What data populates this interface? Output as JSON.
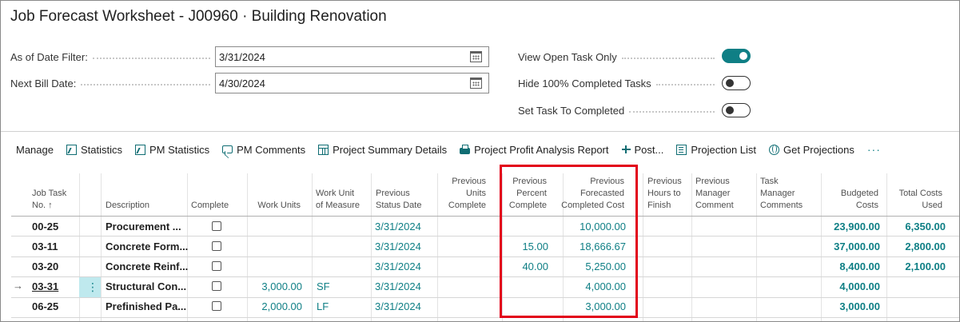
{
  "page_title": "Job Forecast Worksheet - J00960 · Building Renovation",
  "filters": {
    "as_of_date": {
      "label": "As of Date Filter:",
      "value": "3/31/2024"
    },
    "next_bill_date": {
      "label": "Next Bill Date:",
      "value": "4/30/2024"
    }
  },
  "toggles": {
    "view_open_task_only": {
      "label": "View Open Task Only",
      "on": true
    },
    "hide_completed": {
      "label": "Hide 100% Completed Tasks",
      "on": false
    },
    "set_task_completed": {
      "label": "Set Task To Completed",
      "on": false
    }
  },
  "actions": {
    "manage": "Manage",
    "statistics": "Statistics",
    "pm_statistics": "PM Statistics",
    "pm_comments": "PM Comments",
    "project_summary": "Project Summary Details",
    "profit_report": "Project Profit Analysis Report",
    "post": "Post...",
    "projection_list": "Projection List",
    "get_projections": "Get Projections",
    "more": "···"
  },
  "columns": {
    "job_task_no": [
      "Job Task",
      "No. ↑"
    ],
    "description": [
      "Description"
    ],
    "complete": [
      "Complete"
    ],
    "work_units": [
      "Work Units"
    ],
    "work_unit_measure": [
      "Work Unit",
      "of Measure"
    ],
    "prev_status_date": [
      "Previous",
      "Status Date"
    ],
    "prev_units_complete": [
      "Previous",
      "Units",
      "Complete"
    ],
    "prev_percent_complete": [
      "Previous",
      "Percent",
      "Complete"
    ],
    "prev_forecasted_cost": [
      "Previous",
      "Forecasted",
      "Completed Cost"
    ],
    "prev_hours_finish": [
      "Previous",
      "Hours to",
      "Finish"
    ],
    "prev_manager_comment": [
      "Previous",
      "Manager",
      "Comment"
    ],
    "task_manager_comments": [
      "Task",
      "Manager",
      "Comments"
    ],
    "budgeted_costs": [
      "Budgeted",
      "Costs"
    ],
    "total_costs_used": [
      "Total Costs",
      "Used"
    ]
  },
  "rows": [
    {
      "task": "00-25",
      "desc": "Procurement ...",
      "work_units": "",
      "uom": "",
      "status_date": "3/31/2024",
      "pct": "",
      "fcost": "10,000.00",
      "budget": "23,900.00",
      "used": "6,350.00"
    },
    {
      "task": "03-11",
      "desc": "Concrete Form...",
      "work_units": "",
      "uom": "",
      "status_date": "3/31/2024",
      "pct": "15.00",
      "fcost": "18,666.67",
      "budget": "37,000.00",
      "used": "2,800.00"
    },
    {
      "task": "03-20",
      "desc": "Concrete Reinf...",
      "work_units": "",
      "uom": "",
      "status_date": "3/31/2024",
      "pct": "40.00",
      "fcost": "5,250.00",
      "budget": "8,400.00",
      "used": "2,100.00"
    },
    {
      "task": "03-31",
      "desc": "Structural Con...",
      "work_units": "3,000.00",
      "uom": "SF",
      "status_date": "3/31/2024",
      "pct": "",
      "fcost": "4,000.00",
      "budget": "4,000.00",
      "used": ""
    },
    {
      "task": "06-25",
      "desc": "Prefinished Pa...",
      "work_units": "2,000.00",
      "uom": "LF",
      "status_date": "3/31/2024",
      "pct": "",
      "fcost": "3,000.00",
      "budget": "3,000.00",
      "used": ""
    }
  ],
  "colors": {
    "accent": "#0f7f85",
    "highlight_box": "#e2001a",
    "selected_row_strip": "#bfe9ee"
  },
  "icons": {
    "calendar": "calendar-icon",
    "statistics": "chart-icon",
    "comment": "comment-icon",
    "table": "table-icon",
    "print": "print-icon",
    "post": "post-icon",
    "list": "list-icon",
    "globe": "globe-icon",
    "row_arrow": "→",
    "row_menu": "⋮"
  }
}
